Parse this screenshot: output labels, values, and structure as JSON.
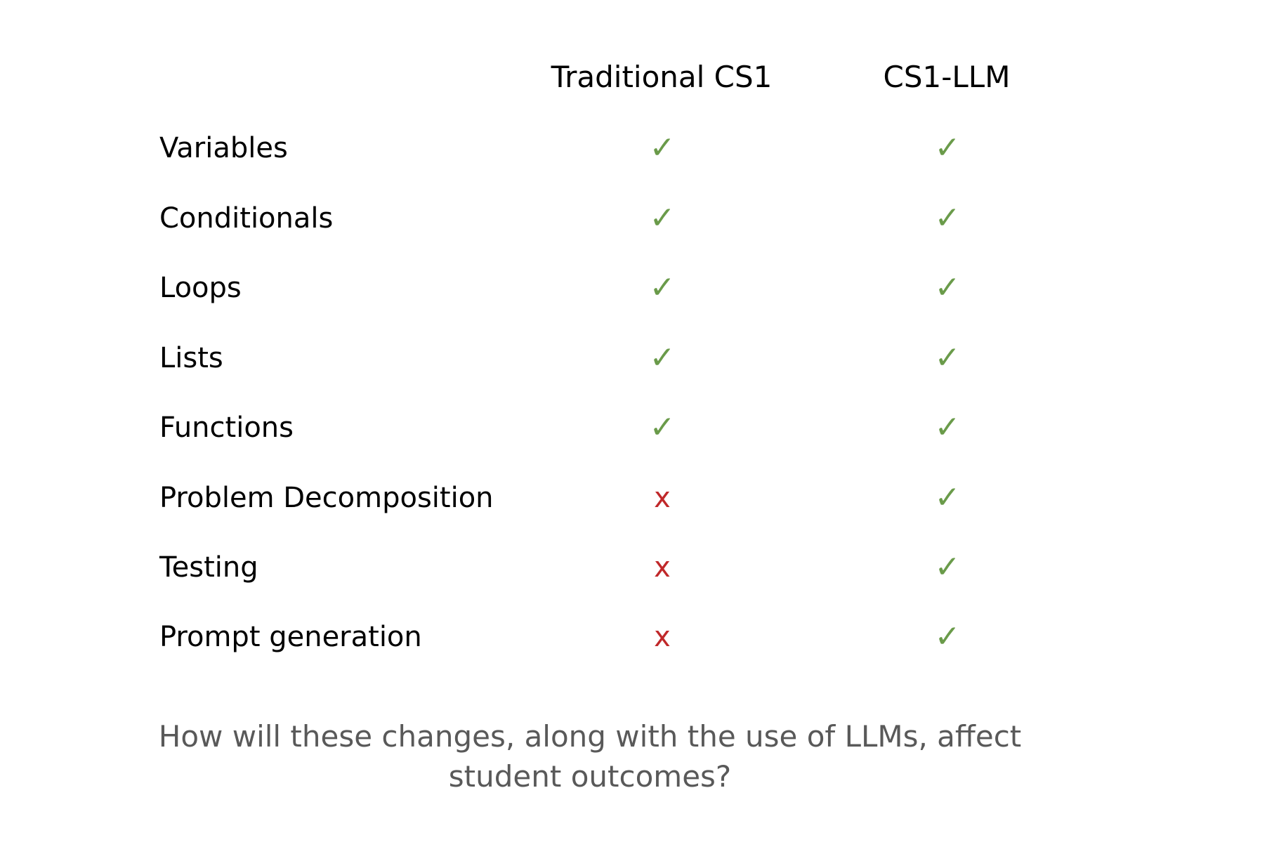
{
  "table": {
    "columns": [
      "Traditional CS1",
      "CS1-LLM"
    ],
    "rows": [
      {
        "topic": "Variables",
        "traditional": "✓",
        "llm": "✓"
      },
      {
        "topic": "Conditionals",
        "traditional": "✓",
        "llm": "✓"
      },
      {
        "topic": "Loops",
        "traditional": "✓",
        "llm": "✓"
      },
      {
        "topic": "Lists",
        "traditional": "✓",
        "llm": "✓"
      },
      {
        "topic": "Functions",
        "traditional": "✓",
        "llm": "✓"
      },
      {
        "topic": "Problem Decomposition",
        "traditional": "x",
        "llm": "✓"
      },
      {
        "topic": "Testing",
        "traditional": "x",
        "llm": "✓"
      },
      {
        "topic": "Prompt generation",
        "traditional": "x",
        "llm": "✓"
      }
    ]
  },
  "question": "How will these changes, along with the use of LLMs,  affect student outcomes?",
  "colors": {
    "check": "#6a9b4a",
    "cross": "#c0282a",
    "question_text": "#595959"
  }
}
